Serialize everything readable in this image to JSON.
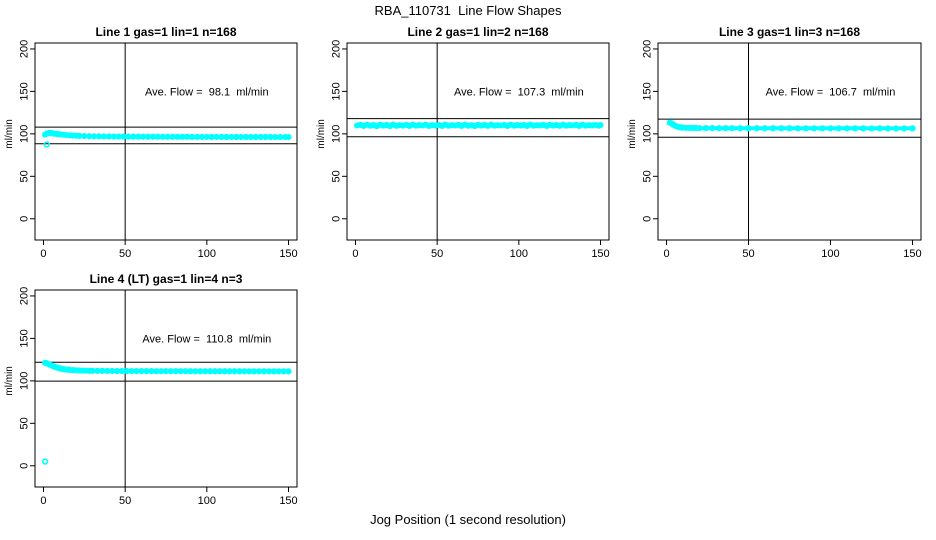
{
  "figure": {
    "title": "RBA_110731  Line Flow Shapes",
    "xlabel": "Jog Position (1 second resolution)"
  },
  "colors": {
    "points": "#00ffff",
    "axis": "#000000",
    "background": "#ffffff"
  },
  "chart_data": [
    {
      "type": "scatter",
      "title": "Line 1 gas=1 lin=1 n=168",
      "ylabel": "ml/min",
      "ave_flow": 98.1,
      "annotation": "Ave. Flow =  98.1  ml/min",
      "annotation_pos": {
        "x": 100,
        "y": 150
      },
      "x_ticks": [
        0,
        50,
        100,
        150
      ],
      "y_ticks": [
        0,
        50,
        100,
        150,
        200
      ],
      "xlim": [
        -5.2,
        155.2
      ],
      "ylim": [
        -25,
        207
      ],
      "vline_x": 50,
      "hlines": [
        107.9,
        88.3
      ],
      "points": [
        [
          1,
          99.2
        ],
        [
          2,
          100.3
        ],
        [
          3,
          100.8
        ],
        [
          4,
          101.0
        ],
        [
          5,
          100.9
        ],
        [
          6,
          100.5
        ],
        [
          7,
          100.2
        ],
        [
          8,
          100.0
        ],
        [
          9,
          99.7
        ],
        [
          10,
          99.4
        ],
        [
          12,
          99.0
        ],
        [
          14,
          98.6
        ],
        [
          16,
          98.3
        ],
        [
          18,
          98.0
        ],
        [
          20,
          97.8
        ],
        [
          22,
          97.6
        ],
        [
          25,
          97.4
        ],
        [
          28,
          97.2
        ],
        [
          31,
          97.1
        ],
        [
          34,
          97.0
        ],
        [
          37,
          96.9
        ],
        [
          40,
          96.9
        ],
        [
          43,
          96.8
        ],
        [
          46,
          96.8
        ],
        [
          49,
          96.8
        ],
        [
          52,
          96.7
        ],
        [
          55,
          96.7
        ],
        [
          58,
          96.7
        ],
        [
          61,
          96.6
        ],
        [
          64,
          96.6
        ],
        [
          67,
          96.6
        ],
        [
          70,
          96.6
        ],
        [
          73,
          96.5
        ],
        [
          76,
          96.5
        ],
        [
          79,
          96.5
        ],
        [
          82,
          96.5
        ],
        [
          85,
          96.5
        ],
        [
          88,
          96.5
        ],
        [
          91,
          96.4
        ],
        [
          94,
          96.4
        ],
        [
          97,
          96.4
        ],
        [
          100,
          96.4
        ],
        [
          103,
          96.4
        ],
        [
          106,
          96.4
        ],
        [
          109,
          96.4
        ],
        [
          112,
          96.3
        ],
        [
          115,
          96.3
        ],
        [
          118,
          96.3
        ],
        [
          121,
          96.3
        ],
        [
          124,
          96.3
        ],
        [
          127,
          96.3
        ],
        [
          130,
          96.3
        ],
        [
          133,
          96.3
        ],
        [
          136,
          96.3
        ],
        [
          139,
          96.3
        ],
        [
          142,
          96.2
        ],
        [
          145,
          96.2
        ],
        [
          148,
          96.2
        ],
        [
          150,
          96.2
        ]
      ],
      "outliers": [
        [
          2,
          87.5
        ]
      ]
    },
    {
      "type": "scatter",
      "title": "Line 2 gas=1 lin=2 n=168",
      "ylabel": "ml/min",
      "ave_flow": 107.3,
      "annotation": "Ave. Flow =  107.3  ml/min",
      "annotation_pos": {
        "x": 100,
        "y": 150
      },
      "x_ticks": [
        0,
        50,
        100,
        150
      ],
      "y_ticks": [
        0,
        50,
        100,
        150,
        200
      ],
      "xlim": [
        -5.2,
        155.2
      ],
      "ylim": [
        -25,
        207
      ],
      "vline_x": 50,
      "hlines": [
        118.0,
        96.6
      ],
      "points": [
        [
          1,
          109.9
        ],
        [
          3,
          110.6
        ],
        [
          5,
          109.3
        ],
        [
          7,
          110.8
        ],
        [
          9,
          109.6
        ],
        [
          11,
          110.3
        ],
        [
          13,
          109.1
        ],
        [
          15,
          110.7
        ],
        [
          17,
          109.8
        ],
        [
          19,
          110.4
        ],
        [
          21,
          109.2
        ],
        [
          23,
          110.9
        ],
        [
          25,
          109.5
        ],
        [
          27,
          110.2
        ],
        [
          29,
          109.8
        ],
        [
          31,
          110.6
        ],
        [
          33,
          109.3
        ],
        [
          35,
          110.8
        ],
        [
          37,
          109.6
        ],
        [
          39,
          110.3
        ],
        [
          41,
          109.9
        ],
        [
          43,
          110.7
        ],
        [
          45,
          109.4
        ],
        [
          47,
          110.2
        ],
        [
          49,
          109.8
        ],
        [
          51,
          110.5
        ],
        [
          53,
          109.3
        ],
        [
          55,
          110.9
        ],
        [
          57,
          109.6
        ],
        [
          59,
          110.2
        ],
        [
          61,
          109.9
        ],
        [
          63,
          110.6
        ],
        [
          65,
          109.4
        ],
        [
          67,
          110.8
        ],
        [
          69,
          109.7
        ],
        [
          71,
          110.3
        ],
        [
          73,
          109.2
        ],
        [
          75,
          110.6
        ],
        [
          77,
          109.8
        ],
        [
          79,
          110.4
        ],
        [
          81,
          109.5
        ],
        [
          83,
          110.9
        ],
        [
          85,
          109.7
        ],
        [
          87,
          110.2
        ],
        [
          89,
          109.9
        ],
        [
          91,
          110.5
        ],
        [
          93,
          109.3
        ],
        [
          95,
          110.8
        ],
        [
          97,
          109.6
        ],
        [
          99,
          110.3
        ],
        [
          101,
          109.8
        ],
        [
          103,
          110.6
        ],
        [
          105,
          109.4
        ],
        [
          107,
          110.9
        ],
        [
          109,
          109.7
        ],
        [
          111,
          110.2
        ],
        [
          113,
          109.9
        ],
        [
          115,
          110.5
        ],
        [
          117,
          109.3
        ],
        [
          119,
          110.7
        ],
        [
          121,
          109.8
        ],
        [
          123,
          110.4
        ],
        [
          125,
          109.5
        ],
        [
          127,
          110.8
        ],
        [
          129,
          109.7
        ],
        [
          131,
          110.3
        ],
        [
          133,
          109.9
        ],
        [
          135,
          110.6
        ],
        [
          137,
          109.4
        ],
        [
          139,
          110.8
        ],
        [
          141,
          109.6
        ],
        [
          143,
          110.2
        ],
        [
          145,
          109.9
        ],
        [
          147,
          110.5
        ],
        [
          149,
          109.7
        ],
        [
          150,
          110.3
        ]
      ],
      "outliers": []
    },
    {
      "type": "scatter",
      "title": "Line 3 gas=1 lin=3 n=168",
      "ylabel": "ml/min",
      "ave_flow": 106.7,
      "annotation": "Ave. Flow =  106.7  ml/min",
      "annotation_pos": {
        "x": 100,
        "y": 150
      },
      "x_ticks": [
        0,
        50,
        100,
        150
      ],
      "y_ticks": [
        0,
        50,
        100,
        150,
        200
      ],
      "xlim": [
        -5.2,
        155.2
      ],
      "ylim": [
        -25,
        207
      ],
      "vline_x": 50,
      "hlines": [
        117.4,
        96.0
      ],
      "points": [
        [
          2,
          113.2
        ],
        [
          3,
          112.4
        ],
        [
          4,
          111.0
        ],
        [
          5,
          109.9
        ],
        [
          6,
          108.9
        ],
        [
          7,
          108.3
        ],
        [
          8,
          107.8
        ],
        [
          9,
          107.5
        ],
        [
          10,
          107.3
        ],
        [
          12,
          107.1
        ],
        [
          14,
          107.0
        ],
        [
          16,
          106.9
        ],
        [
          18,
          106.9
        ],
        [
          20,
          106.8
        ],
        [
          24,
          106.8
        ],
        [
          28,
          106.8
        ],
        [
          32,
          106.7
        ],
        [
          36,
          106.7
        ],
        [
          40,
          106.7
        ],
        [
          45,
          106.7
        ],
        [
          50,
          106.6
        ],
        [
          55,
          106.6
        ],
        [
          60,
          106.6
        ],
        [
          65,
          106.6
        ],
        [
          70,
          106.6
        ],
        [
          75,
          106.6
        ],
        [
          80,
          106.5
        ],
        [
          85,
          106.5
        ],
        [
          90,
          106.5
        ],
        [
          95,
          106.5
        ],
        [
          100,
          106.5
        ],
        [
          105,
          106.5
        ],
        [
          110,
          106.5
        ],
        [
          115,
          106.5
        ],
        [
          120,
          106.5
        ],
        [
          125,
          106.4
        ],
        [
          130,
          106.5
        ],
        [
          135,
          106.4
        ],
        [
          140,
          106.4
        ],
        [
          145,
          106.4
        ],
        [
          150,
          106.5
        ]
      ],
      "outliers": []
    },
    {
      "type": "scatter",
      "title": "Line 4 (LT) gas=1 lin=4 n=3",
      "ylabel": "ml/min",
      "ave_flow": 110.8,
      "annotation": "Ave. Flow =  110.8  ml/min",
      "annotation_pos": {
        "x": 100,
        "y": 150
      },
      "x_ticks": [
        0,
        50,
        100,
        150
      ],
      "y_ticks": [
        0,
        50,
        100,
        150,
        200
      ],
      "xlim": [
        -5.2,
        155.2
      ],
      "ylim": [
        -25,
        207
      ],
      "vline_x": 50,
      "hlines": [
        121.9,
        99.7
      ],
      "points": [
        [
          1,
          121.2
        ],
        [
          2,
          120.7
        ],
        [
          3,
          119.9
        ],
        [
          4,
          119.0
        ],
        [
          5,
          118.1
        ],
        [
          6,
          117.3
        ],
        [
          7,
          116.5
        ],
        [
          8,
          115.8
        ],
        [
          9,
          115.2
        ],
        [
          10,
          114.7
        ],
        [
          11,
          114.3
        ],
        [
          12,
          113.9
        ],
        [
          13,
          113.6
        ],
        [
          14,
          113.3
        ],
        [
          15,
          113.1
        ],
        [
          16,
          112.9
        ],
        [
          18,
          112.6
        ],
        [
          20,
          112.4
        ],
        [
          22,
          112.2
        ],
        [
          24,
          112.1
        ],
        [
          26,
          112.0
        ],
        [
          28,
          111.9
        ],
        [
          30,
          111.9
        ],
        [
          33,
          111.8
        ],
        [
          36,
          111.8
        ],
        [
          39,
          111.7
        ],
        [
          42,
          111.7
        ],
        [
          45,
          111.6
        ],
        [
          48,
          111.6
        ],
        [
          51,
          111.6
        ],
        [
          54,
          111.5
        ],
        [
          57,
          111.5
        ],
        [
          60,
          111.5
        ],
        [
          63,
          111.5
        ],
        [
          66,
          111.5
        ],
        [
          69,
          111.4
        ],
        [
          72,
          111.4
        ],
        [
          75,
          111.4
        ],
        [
          78,
          111.4
        ],
        [
          81,
          111.4
        ],
        [
          84,
          111.4
        ],
        [
          87,
          111.4
        ],
        [
          90,
          111.3
        ],
        [
          93,
          111.3
        ],
        [
          96,
          111.3
        ],
        [
          99,
          111.3
        ],
        [
          102,
          111.3
        ],
        [
          105,
          111.3
        ],
        [
          108,
          111.3
        ],
        [
          111,
          111.3
        ],
        [
          114,
          111.3
        ],
        [
          117,
          111.3
        ],
        [
          120,
          111.3
        ],
        [
          123,
          111.2
        ],
        [
          126,
          111.2
        ],
        [
          129,
          111.2
        ],
        [
          132,
          111.2
        ],
        [
          135,
          111.2
        ],
        [
          138,
          111.2
        ],
        [
          141,
          111.2
        ],
        [
          144,
          111.2
        ],
        [
          147,
          111.2
        ],
        [
          150,
          111.2
        ]
      ],
      "outliers": [
        [
          1,
          5
        ]
      ]
    }
  ]
}
